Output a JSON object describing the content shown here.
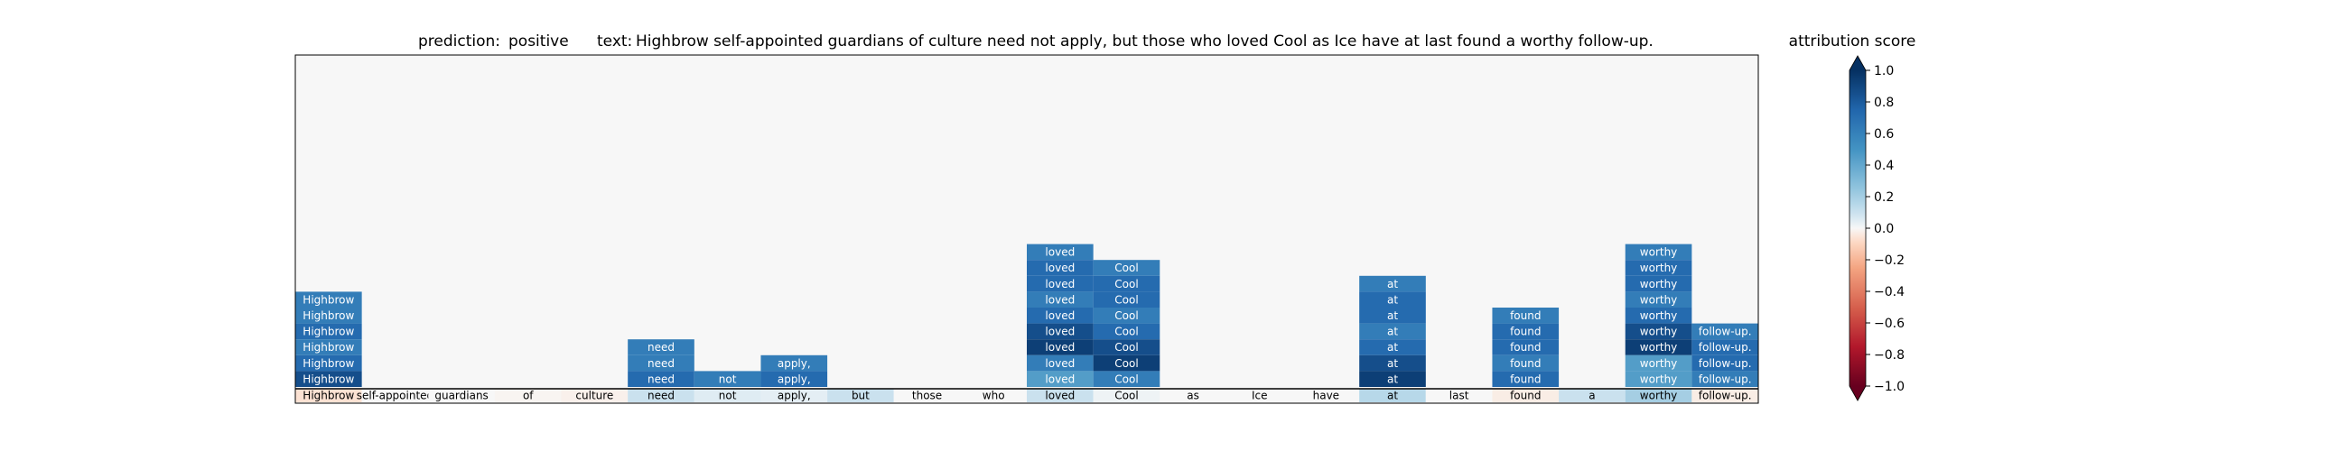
{
  "header": {
    "prediction_label": "prediction:",
    "prediction_value": "positive",
    "text_label": "text:",
    "text_value": "Highbrow self-appointed guardians of culture need not apply, but those who loved Cool as Ice have at last found a worthy follow-up."
  },
  "chart_data": {
    "type": "heatmap",
    "tokens": [
      "Highbrow",
      "self-appointed",
      "guardians",
      "of",
      "culture",
      "need",
      "not",
      "apply,",
      "but",
      "those",
      "who",
      "loved",
      "Cool",
      "as",
      "Ice",
      "have",
      "at",
      "last",
      "found",
      "a",
      "worthy",
      "follow-up."
    ],
    "base_row_scores": [
      -0.06,
      0.0,
      0.0,
      -0.01,
      -0.02,
      0.1,
      0.05,
      0.04,
      0.1,
      0.0,
      0.0,
      0.1,
      0.02,
      0.0,
      0.0,
      0.0,
      0.15,
      0.0,
      -0.03,
      0.1,
      0.2,
      -0.03
    ],
    "stacks": [
      {
        "token_index": 0,
        "scores": [
          0.62,
          0.62,
          0.72,
          0.62,
          0.72,
          0.86
        ]
      },
      {
        "token_index": 5,
        "scores": [
          0.62,
          0.62,
          0.72
        ]
      },
      {
        "token_index": 6,
        "scores": [
          0.62
        ]
      },
      {
        "token_index": 7,
        "scores": [
          0.62,
          0.72
        ]
      },
      {
        "token_index": 11,
        "scores": [
          0.62,
          0.72,
          0.72,
          0.62,
          0.72,
          0.86,
          0.93,
          0.62,
          0.45
        ]
      },
      {
        "token_index": 12,
        "scores": [
          0.62,
          0.72,
          0.72,
          0.62,
          0.72,
          0.86,
          0.93,
          0.62
        ]
      },
      {
        "token_index": 16,
        "scores": [
          0.62,
          0.72,
          0.72,
          0.62,
          0.72,
          0.86,
          0.93
        ]
      },
      {
        "token_index": 18,
        "scores": [
          0.62,
          0.72,
          0.72,
          0.62,
          0.72
        ]
      },
      {
        "token_index": 20,
        "scores": [
          0.62,
          0.72,
          0.72,
          0.62,
          0.72,
          0.86,
          0.93,
          0.45,
          0.45
        ]
      },
      {
        "token_index": 21,
        "scores": [
          0.62,
          0.72,
          0.72,
          0.62
        ]
      }
    ],
    "colorbar": {
      "title": "attribution score",
      "range": [
        -1.0,
        1.0
      ],
      "ticks": [
        1.0,
        0.8,
        0.6,
        0.4,
        0.2,
        0.0,
        -0.2,
        -0.4,
        -0.6,
        -0.8,
        -1.0
      ],
      "tick_labels": [
        "1.0",
        "0.8",
        "0.6",
        "0.4",
        "0.2",
        "0.0",
        "−0.2",
        "−0.4",
        "−0.6",
        "−0.8",
        "−1.0"
      ],
      "colormap": "RdBu"
    },
    "grid": false
  }
}
